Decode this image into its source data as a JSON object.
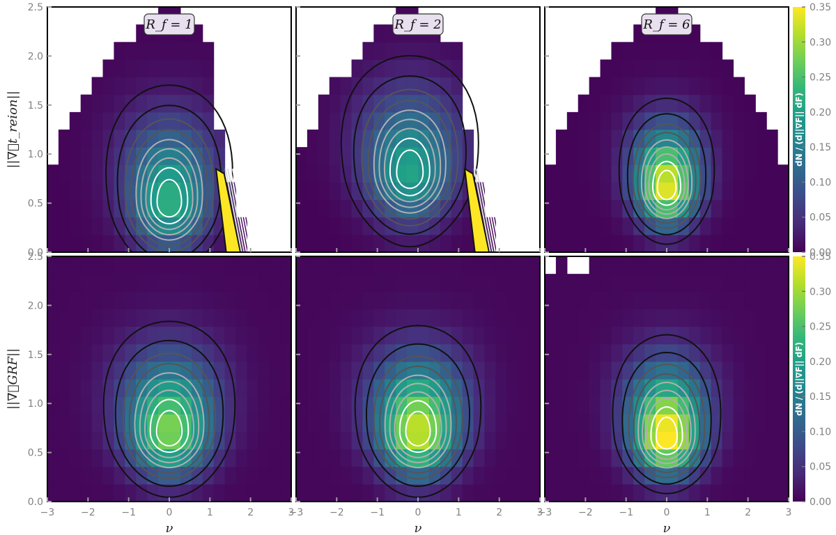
{
  "chart_data": {
    "type": "heatmap",
    "layout": "2x3 grid of 2D histograms with contour overlays",
    "x_range": [
      -3,
      3
    ],
    "y_range": [
      0,
      2.5
    ],
    "x_ticks": [
      "−3",
      "−2",
      "−1",
      "0",
      "1",
      "2",
      "3"
    ],
    "y_ticks": [
      "0.0",
      "0.5",
      "1.0",
      "1.5",
      "2.0",
      "2.5"
    ],
    "colormap": "viridis",
    "colorbar_range": [
      0,
      0.35
    ],
    "colorbar_ticks": [
      "0.00",
      "0.05",
      "0.10",
      "0.15",
      "0.20",
      "0.25",
      "0.30",
      "0.35"
    ],
    "colorbar_label": "dN / (d||∇F|| dF)",
    "rows": [
      {
        "ylabel": "||∇⃗t_reion||",
        "panels": [
          {
            "label": "R_f = 1",
            "peak_nu": 0.0,
            "peak_grad": 0.5,
            "peak_density": 0.22
          },
          {
            "label": "R_f = 2",
            "peak_nu": -0.2,
            "peak_grad": 0.8,
            "peak_density": 0.2
          },
          {
            "label": "R_f = 6",
            "peak_nu": 0.0,
            "peak_grad": 0.65,
            "peak_density": 0.34
          }
        ]
      },
      {
        "ylabel": "||∇⃗GRF||",
        "panels": [
          {
            "peak_nu": 0.0,
            "peak_grad": 0.7,
            "peak_density": 0.28
          },
          {
            "peak_nu": 0.0,
            "peak_grad": 0.7,
            "peak_density": 0.32
          },
          {
            "peak_nu": 0.0,
            "peak_grad": 0.65,
            "peak_density": 0.36
          }
        ]
      }
    ],
    "xlabel": "ν",
    "colors": {
      "contour_outer": "#ffffff",
      "contour_mid": "#b0b0b0",
      "contour_inner": "#555555",
      "contour_core": "#111111"
    }
  }
}
